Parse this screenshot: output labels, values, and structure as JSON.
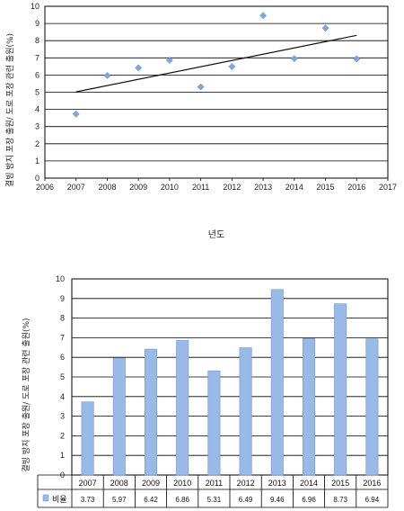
{
  "chart_data": [
    {
      "type": "scatter",
      "title": "",
      "xlabel": "년도",
      "ylabel": "결빙 방지 포장 출원/ 도로 포장 관련 출원(%)",
      "xlim": [
        2006,
        2017
      ],
      "ylim": [
        0,
        10
      ],
      "x_ticks": [
        "2006",
        "2007",
        "2008",
        "2009",
        "2010",
        "2011",
        "2012",
        "2013",
        "2014",
        "2015",
        "2016",
        "2017"
      ],
      "y_ticks": [
        "0",
        "1",
        "2",
        "3",
        "4",
        "5",
        "6",
        "7",
        "8",
        "9",
        "10"
      ],
      "grid": "horizontal",
      "marker_color": "#7fa7dc",
      "trendline": {
        "type": "linear",
        "color": "#111111",
        "points": [
          [
            2007,
            5.02
          ],
          [
            2016,
            8.31
          ]
        ]
      },
      "x": [
        2007,
        2008,
        2009,
        2010,
        2011,
        2012,
        2013,
        2014,
        2015,
        2016
      ],
      "y": [
        3.73,
        5.97,
        6.42,
        6.86,
        5.31,
        6.49,
        9.46,
        6.96,
        8.73,
        6.94
      ]
    },
    {
      "type": "bar",
      "title": "",
      "xlabel": "",
      "ylabel": "결빙 방지 포장 출원/ 도로 포장 관련 출원(%)",
      "ylim": [
        0,
        10
      ],
      "y_ticks": [
        "0",
        "1",
        "2",
        "3",
        "4",
        "5",
        "6",
        "7",
        "8",
        "9",
        "10"
      ],
      "grid": "horizontal",
      "bar_color": "#99b9e6",
      "categories": [
        "2007",
        "2008",
        "2009",
        "2010",
        "2011",
        "2012",
        "2013",
        "2014",
        "2015",
        "2016"
      ],
      "series": [
        {
          "name": "비율",
          "values": [
            3.73,
            5.97,
            6.42,
            6.86,
            5.31,
            6.49,
            9.46,
            6.96,
            8.73,
            6.94
          ]
        }
      ],
      "table_labels": [
        "3.73",
        "5.97",
        "6.42",
        "6.86",
        "5.31",
        "6.49",
        "9.46",
        "6.96",
        "8.73",
        "6.94"
      ]
    }
  ]
}
